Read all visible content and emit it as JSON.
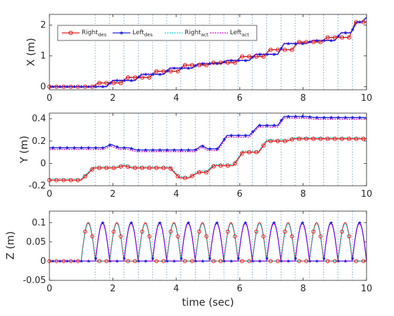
{
  "chart_data": [
    {
      "type": "line",
      "ylabel": "X (m)",
      "xlabel": "",
      "xlim": [
        0,
        10
      ],
      "ylim": [
        -0.1,
        2.35
      ],
      "xticks": [
        "0",
        "2",
        "4",
        "6",
        "8",
        "10"
      ],
      "yticks": [
        "0",
        "1",
        "2"
      ],
      "yticks_values": [
        0,
        1,
        2
      ],
      "grid": "vertical dashed lines at step times",
      "legend": {
        "placement": "top-left",
        "entries": [
          {
            "base": "Right",
            "sub": "des",
            "color": "#e41a1c",
            "style": "solid-circle"
          },
          {
            "base": "Left",
            "sub": "des",
            "color": "#1f1fd6",
            "style": "solid-star"
          },
          {
            "base": "Right",
            "sub": "act",
            "color": "#00cccc",
            "style": "dotted"
          },
          {
            "base": "Left",
            "sub": "act",
            "color": "#cc00cc",
            "style": "dotted"
          }
        ]
      },
      "series": [
        {
          "name": "Right_des",
          "color": "#e41a1c",
          "points": [
            [
              0,
              0
            ],
            [
              1.35,
              0
            ],
            [
              1.55,
              0.12
            ],
            [
              2.25,
              0.12
            ],
            [
              2.45,
              0.3
            ],
            [
              3.15,
              0.3
            ],
            [
              3.35,
              0.5
            ],
            [
              4.05,
              0.5
            ],
            [
              4.25,
              0.7
            ],
            [
              4.95,
              0.7
            ],
            [
              5.15,
              0.78
            ],
            [
              5.85,
              0.78
            ],
            [
              6.05,
              0.98
            ],
            [
              6.75,
              0.98
            ],
            [
              6.95,
              1.2
            ],
            [
              7.65,
              1.2
            ],
            [
              7.85,
              1.45
            ],
            [
              8.55,
              1.45
            ],
            [
              8.75,
              1.6
            ],
            [
              9.45,
              1.6
            ],
            [
              9.65,
              2.1
            ],
            [
              10,
              2.1
            ]
          ]
        },
        {
          "name": "Left_des",
          "color": "#1f1fd6",
          "points": [
            [
              0,
              0
            ],
            [
              1.8,
              0
            ],
            [
              2.0,
              0.2
            ],
            [
              2.7,
              0.2
            ],
            [
              2.9,
              0.4
            ],
            [
              3.6,
              0.4
            ],
            [
              3.8,
              0.6
            ],
            [
              4.5,
              0.6
            ],
            [
              4.7,
              0.75
            ],
            [
              5.4,
              0.75
            ],
            [
              5.6,
              0.85
            ],
            [
              6.3,
              0.85
            ],
            [
              6.5,
              1.05
            ],
            [
              7.2,
              1.05
            ],
            [
              7.4,
              1.4
            ],
            [
              8.1,
              1.4
            ],
            [
              8.3,
              1.5
            ],
            [
              9.0,
              1.5
            ],
            [
              9.2,
              1.75
            ],
            [
              9.5,
              1.75
            ],
            [
              9.7,
              2.1
            ],
            [
              9.85,
              2.1
            ],
            [
              10,
              2.25
            ]
          ]
        }
      ]
    },
    {
      "type": "line",
      "ylabel": "Y (m)",
      "xlabel": "",
      "xlim": [
        0,
        10
      ],
      "ylim": [
        -0.2,
        0.45
      ],
      "xticks": [
        "0",
        "2",
        "4",
        "6",
        "8",
        "10"
      ],
      "yticks": [
        "-0.2",
        "0",
        "0.2",
        "0.4"
      ],
      "yticks_values": [
        -0.2,
        0,
        0.2,
        0.4
      ],
      "grid": "vertical dashed lines at step times",
      "series": [
        {
          "name": "Right_des",
          "color": "#e41a1c",
          "points": [
            [
              0,
              -0.15
            ],
            [
              1.0,
              -0.15
            ],
            [
              1.4,
              -0.04
            ],
            [
              2.1,
              -0.04
            ],
            [
              2.35,
              -0.02
            ],
            [
              2.6,
              -0.04
            ],
            [
              3.8,
              -0.04
            ],
            [
              4.1,
              -0.13
            ],
            [
              4.4,
              -0.13
            ],
            [
              4.7,
              -0.08
            ],
            [
              4.95,
              -0.08
            ],
            [
              5.2,
              -0.02
            ],
            [
              5.8,
              -0.02
            ],
            [
              6.1,
              0.1
            ],
            [
              6.6,
              0.1
            ],
            [
              6.85,
              0.2
            ],
            [
              7.5,
              0.2
            ],
            [
              7.7,
              0.22
            ],
            [
              10,
              0.22
            ]
          ]
        },
        {
          "name": "Left_des",
          "color": "#1f1fd6",
          "points": [
            [
              0,
              0.14
            ],
            [
              1.7,
              0.14
            ],
            [
              1.95,
              0.17
            ],
            [
              2.2,
              0.14
            ],
            [
              2.5,
              0.14
            ],
            [
              2.75,
              0.12
            ],
            [
              4.6,
              0.12
            ],
            [
              4.8,
              0.16
            ],
            [
              5.0,
              0.13
            ],
            [
              5.3,
              0.13
            ],
            [
              5.6,
              0.25
            ],
            [
              6.3,
              0.25
            ],
            [
              6.6,
              0.34
            ],
            [
              7.2,
              0.34
            ],
            [
              7.4,
              0.42
            ],
            [
              8.1,
              0.42
            ],
            [
              8.35,
              0.41
            ],
            [
              10,
              0.41
            ]
          ]
        }
      ]
    },
    {
      "type": "line",
      "ylabel": "Z (m)",
      "xlabel": "time (sec)",
      "xlim": [
        0,
        10
      ],
      "ylim": [
        -0.05,
        0.13
      ],
      "xticks": [
        "0",
        "2",
        "4",
        "6",
        "8",
        "10"
      ],
      "yticks": [
        "-0.05",
        "0",
        "0.05",
        "0.1"
      ],
      "yticks_values": [
        -0.05,
        0,
        0.05,
        0.1
      ],
      "grid": "vertical dashed lines at step times",
      "steps": {
        "right_start": 1.0,
        "left_start": 1.45,
        "period": 0.9,
        "duration": 0.45,
        "height": 0.1,
        "count": 10
      }
    }
  ]
}
